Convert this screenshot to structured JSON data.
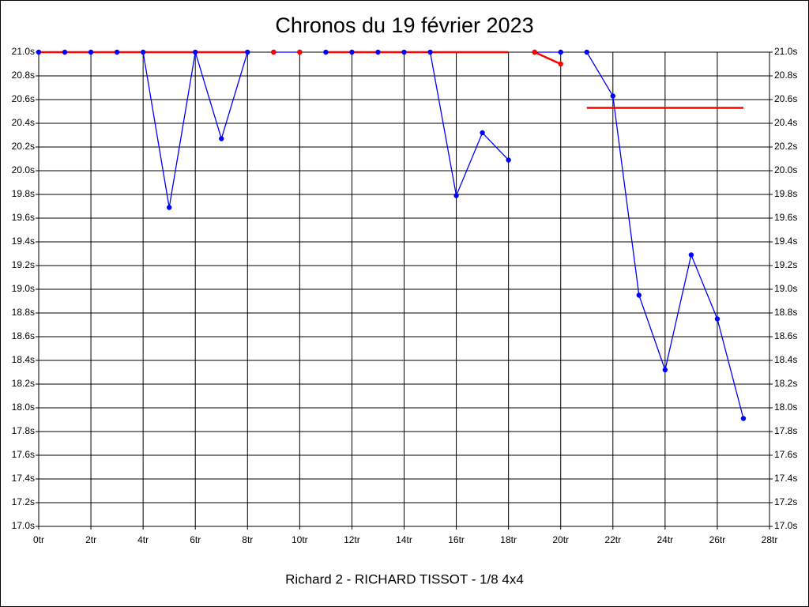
{
  "chart_data": {
    "type": "line",
    "title": "Chronos du 19 février 2023",
    "subtitle": "Richard 2 - RICHARD TISSOT - 1/8 4x4",
    "xlim": [
      0,
      28
    ],
    "xticks": [
      {
        "value": 0,
        "label": "0tr"
      },
      {
        "value": 2,
        "label": "2tr"
      },
      {
        "value": 4,
        "label": "4tr"
      },
      {
        "value": 6,
        "label": "6tr"
      },
      {
        "value": 8,
        "label": "8tr"
      },
      {
        "value": 10,
        "label": "10tr"
      },
      {
        "value": 12,
        "label": "12tr"
      },
      {
        "value": 14,
        "label": "14tr"
      },
      {
        "value": 16,
        "label": "16tr"
      },
      {
        "value": 18,
        "label": "18tr"
      },
      {
        "value": 20,
        "label": "20tr"
      },
      {
        "value": 22,
        "label": "22tr"
      },
      {
        "value": 24,
        "label": "24tr"
      },
      {
        "value": 26,
        "label": "26tr"
      },
      {
        "value": 28,
        "label": "28tr"
      }
    ],
    "ylim": [
      17.0,
      21.0
    ],
    "yticks": [
      {
        "value": 17.0,
        "label": "17.0s"
      },
      {
        "value": 17.2,
        "label": "17.2s"
      },
      {
        "value": 17.4,
        "label": "17.4s"
      },
      {
        "value": 17.6,
        "label": "17.6s"
      },
      {
        "value": 17.8,
        "label": "17.8s"
      },
      {
        "value": 18.0,
        "label": "18.0s"
      },
      {
        "value": 18.2,
        "label": "18.2s"
      },
      {
        "value": 18.4,
        "label": "18.4s"
      },
      {
        "value": 18.6,
        "label": "18.6s"
      },
      {
        "value": 18.8,
        "label": "18.8s"
      },
      {
        "value": 19.0,
        "label": "19.0s"
      },
      {
        "value": 19.2,
        "label": "19.2s"
      },
      {
        "value": 19.4,
        "label": "19.4s"
      },
      {
        "value": 19.6,
        "label": "19.6s"
      },
      {
        "value": 19.8,
        "label": "19.8s"
      },
      {
        "value": 20.0,
        "label": "20.0s"
      },
      {
        "value": 20.2,
        "label": "20.2s"
      },
      {
        "value": 20.4,
        "label": "20.4s"
      },
      {
        "value": 20.6,
        "label": "20.6s"
      },
      {
        "value": 20.8,
        "label": "20.8s"
      },
      {
        "value": 21.0,
        "label": "21.0s"
      }
    ],
    "grid": true,
    "series": [
      {
        "color": "#0000ff",
        "line": true,
        "markers": true,
        "x": [
          0,
          1,
          2,
          3,
          4,
          5,
          6,
          7,
          8
        ],
        "values": [
          21.0,
          21.0,
          21.0,
          21.0,
          21.0,
          19.69,
          21.0,
          20.27,
          21.0
        ]
      },
      {
        "color": "#0000ff",
        "line": true,
        "markers": true,
        "x": [
          9,
          10
        ],
        "values": [
          21.0,
          21.0
        ]
      },
      {
        "color": "#0000ff",
        "line": true,
        "markers": true,
        "x": [
          11,
          12,
          13,
          14,
          15,
          16,
          17,
          18
        ],
        "values": [
          21.0,
          21.0,
          21.0,
          21.0,
          21.0,
          19.79,
          20.32,
          20.09
        ]
      },
      {
        "color": "#0000ff",
        "line": true,
        "markers": true,
        "x": [
          19,
          20
        ],
        "values": [
          21.0,
          21.0
        ]
      },
      {
        "color": "#0000ff",
        "line": true,
        "markers": true,
        "x": [
          21,
          22,
          23,
          24,
          25,
          26,
          27
        ],
        "values": [
          21.0,
          20.63,
          18.95,
          18.32,
          19.29,
          18.75,
          17.91
        ]
      },
      {
        "color": "#ff0000",
        "line": true,
        "markers": false,
        "x": [
          0,
          8
        ],
        "values": [
          21.0,
          21.0
        ]
      },
      {
        "color": "#ff0000",
        "line": false,
        "markers": true,
        "x": [
          9,
          10
        ],
        "values": [
          21.0,
          21.0
        ]
      },
      {
        "color": "#ff0000",
        "line": true,
        "markers": false,
        "x": [
          11,
          18
        ],
        "values": [
          21.0,
          21.0
        ]
      },
      {
        "color": "#ff0000",
        "line": true,
        "markers": true,
        "x": [
          19,
          20
        ],
        "values": [
          21.0,
          20.9
        ]
      },
      {
        "color": "#ff0000",
        "line": true,
        "markers": false,
        "x": [
          21,
          27
        ],
        "values": [
          20.53,
          20.53
        ]
      }
    ]
  }
}
